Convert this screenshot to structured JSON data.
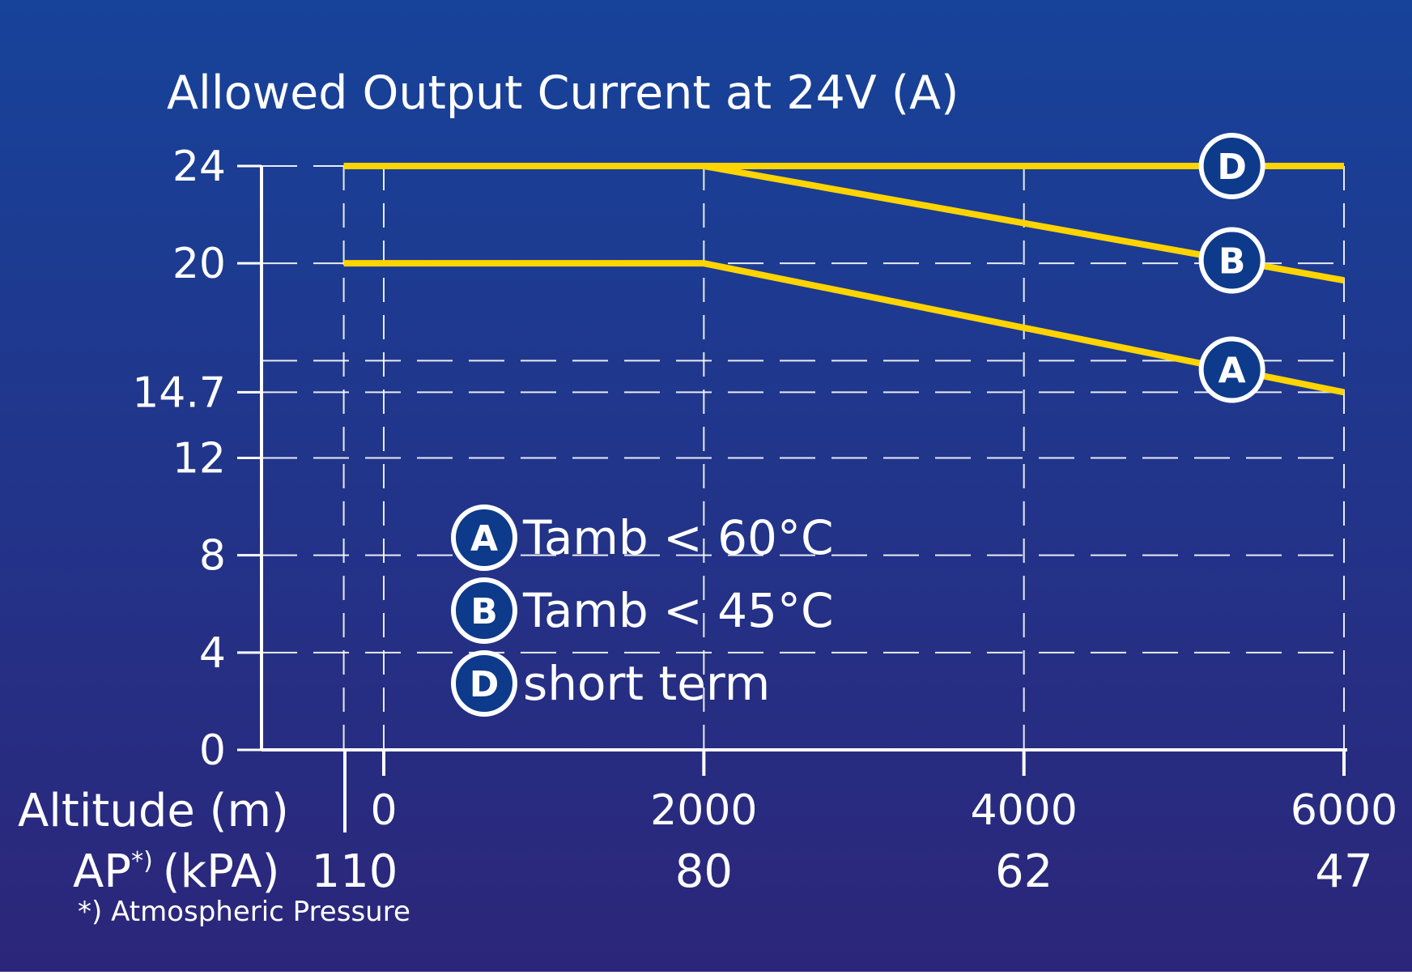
{
  "colors": {
    "background_top": "#17439a",
    "background_bottom": "#2c267a",
    "series_line": "#ffd400",
    "axis": "#ffffff",
    "grid": "#ffffff",
    "badge_fill": "#0d3a8a",
    "text": "#ffffff"
  },
  "chart_data": {
    "type": "line",
    "title": "Allowed Output Current at 24V (A)",
    "xlabel": "Altitude (m)",
    "xlim": [
      -250,
      6000
    ],
    "ylim": [
      0,
      24
    ],
    "x_ticks": [
      {
        "value": 0,
        "label": "0"
      },
      {
        "value": 2000,
        "label": "2000"
      },
      {
        "value": 4000,
        "label": "4000"
      },
      {
        "value": 6000,
        "label": "6000"
      }
    ],
    "y_ticks": [
      {
        "value": 0,
        "label": "0"
      },
      {
        "value": 4,
        "label": "4"
      },
      {
        "value": 8,
        "label": "8"
      },
      {
        "value": 12,
        "label": "12"
      },
      {
        "value": 14.7,
        "label": "14.7"
      },
      {
        "value": 20,
        "label": "20"
      },
      {
        "value": 24,
        "label": "24"
      }
    ],
    "y_gridlines": [
      4,
      8,
      12,
      14.7,
      16,
      20,
      24
    ],
    "x_gridlines": [
      -250,
      0,
      2000,
      4000,
      6000
    ],
    "secondary_axis": {
      "label_prefix": "AP",
      "label_superscript": "*)",
      "label_suffix": "(kPA)",
      "labels": [
        "110",
        "80",
        "62",
        "47"
      ],
      "at_x": [
        0,
        2000,
        4000,
        6000
      ],
      "footnote": "*) Atmospheric Pressure"
    },
    "series": [
      {
        "id": "A",
        "badge": "A",
        "name": "Tamb < 60°C",
        "x": [
          -250,
          2000,
          6000
        ],
        "y": [
          20,
          20,
          14.7
        ],
        "badge_x": 5300
      },
      {
        "id": "B",
        "badge": "B",
        "name": "Tamb < 45°C",
        "x": [
          -250,
          2000,
          6000
        ],
        "y": [
          24,
          24,
          19.3
        ],
        "badge_x": 5300
      },
      {
        "id": "D",
        "badge": "D",
        "name": "short term",
        "x": [
          -250,
          2000,
          6000
        ],
        "y": [
          24,
          24,
          24
        ],
        "badge_x": 5300
      }
    ],
    "grid": true,
    "legend_position": "center-left"
  }
}
